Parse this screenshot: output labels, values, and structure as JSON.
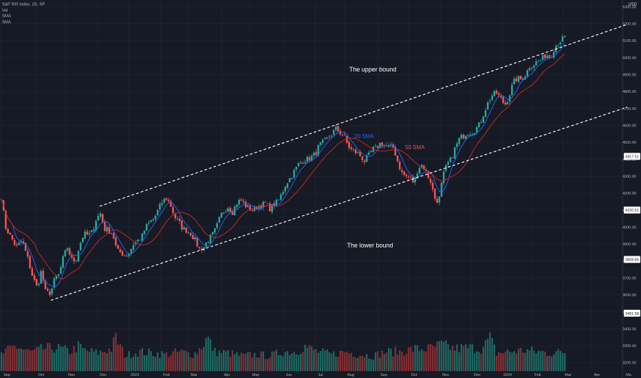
{
  "header": {
    "symbol": "S&P 500 Index, 1D, SP",
    "indicators": [
      "Vol",
      "SMA",
      "SMA"
    ],
    "currency": "USD"
  },
  "colors": {
    "background": "#161a25",
    "up": "#26a69a",
    "down": "#ef5350",
    "sma20": "#2962ff",
    "sma50": "#c62828",
    "channel": "#ffffff",
    "grid": "#1f2330",
    "axis_text": "#b2b5be"
  },
  "chart_data": {
    "type": "candlestick",
    "y_axis": {
      "ticks": [
        3200,
        3300,
        3400,
        3500,
        3600,
        3700,
        3800,
        3900,
        4000,
        4100,
        4200,
        4300,
        4400,
        4500,
        4600,
        4700,
        4800,
        4900,
        5000,
        5100,
        5200,
        5300
      ],
      "tick_labels": [
        "3200.00",
        "3300.00",
        "3400.00",
        "3500.00",
        "3600.00",
        "3700.00",
        "3800.00",
        "3900.00",
        "4000.00",
        "4100.00",
        "4200.00",
        "4300.00",
        "4400.00",
        "4500.00",
        "4600.00",
        "4700.00",
        "4800.00",
        "4900.00",
        "5000.00",
        "5100.00",
        "5200.00",
        "5300.00"
      ],
      "range": [
        3150,
        5340
      ],
      "price_labels": [
        {
          "value": 4417.51,
          "text": "4417.51"
        },
        {
          "value": 4100.51,
          "text": "4100.51"
        },
        {
          "value": 3808.86,
          "text": "3808.86"
        },
        {
          "value": 3491.58,
          "text": "3491.58"
        }
      ]
    },
    "x_axis": {
      "labels": [
        "Sep",
        "Oct",
        "Nov",
        "Dec",
        "2023",
        "Feb",
        "Mar",
        "Apr",
        "May",
        "Jun",
        "Jul",
        "Aug",
        "Sep",
        "Oct",
        "Nov",
        "Dec",
        "2024",
        "Feb",
        "Mar",
        "Apr",
        "Ma"
      ],
      "label_index": [
        0,
        50,
        94,
        140,
        186,
        232,
        272,
        320,
        362,
        410,
        456,
        500,
        548,
        592,
        638,
        684,
        728,
        772,
        816,
        858,
        904
      ]
    },
    "price_anchors": [
      [
        0,
        4180
      ],
      [
        6,
        4000
      ],
      [
        14,
        3940
      ],
      [
        22,
        3880
      ],
      [
        30,
        3920
      ],
      [
        38,
        3820
      ],
      [
        46,
        3700
      ],
      [
        52,
        3640
      ],
      [
        58,
        3740
      ],
      [
        64,
        3620
      ],
      [
        70,
        3610
      ],
      [
        74,
        3640
      ],
      [
        78,
        3700
      ],
      [
        84,
        3720
      ],
      [
        90,
        3820
      ],
      [
        96,
        3880
      ],
      [
        102,
        3810
      ],
      [
        108,
        3800
      ],
      [
        114,
        3900
      ],
      [
        120,
        3960
      ],
      [
        126,
        3950
      ],
      [
        132,
        3970
      ],
      [
        138,
        4050
      ],
      [
        144,
        4080
      ],
      [
        150,
        3990
      ],
      [
        156,
        3980
      ],
      [
        162,
        3960
      ],
      [
        168,
        3860
      ],
      [
        174,
        3850
      ],
      [
        180,
        3830
      ],
      [
        186,
        3850
      ],
      [
        192,
        3900
      ],
      [
        198,
        3920
      ],
      [
        204,
        3940
      ],
      [
        210,
        4000
      ],
      [
        216,
        4030
      ],
      [
        222,
        4050
      ],
      [
        228,
        4100
      ],
      [
        234,
        4150
      ],
      [
        240,
        4170
      ],
      [
        246,
        4130
      ],
      [
        252,
        4060
      ],
      [
        258,
        4030
      ],
      [
        264,
        3990
      ],
      [
        270,
        3980
      ],
      [
        276,
        3960
      ],
      [
        282,
        3920
      ],
      [
        288,
        3870
      ],
      [
        294,
        3880
      ],
      [
        300,
        3920
      ],
      [
        306,
        3950
      ],
      [
        312,
        3990
      ],
      [
        318,
        4060
      ],
      [
        324,
        4100
      ],
      [
        330,
        4120
      ],
      [
        336,
        4090
      ],
      [
        342,
        4140
      ],
      [
        348,
        4160
      ],
      [
        354,
        4130
      ],
      [
        360,
        4110
      ],
      [
        366,
        4100
      ],
      [
        372,
        4120
      ],
      [
        378,
        4130
      ],
      [
        384,
        4140
      ],
      [
        390,
        4110
      ],
      [
        396,
        4130
      ],
      [
        402,
        4150
      ],
      [
        408,
        4200
      ],
      [
        414,
        4260
      ],
      [
        420,
        4290
      ],
      [
        426,
        4330
      ],
      [
        432,
        4370
      ],
      [
        438,
        4390
      ],
      [
        444,
        4400
      ],
      [
        450,
        4410
      ],
      [
        456,
        4430
      ],
      [
        462,
        4480
      ],
      [
        468,
        4500
      ],
      [
        474,
        4520
      ],
      [
        480,
        4550
      ],
      [
        486,
        4580
      ],
      [
        492,
        4560
      ],
      [
        498,
        4540
      ],
      [
        504,
        4480
      ],
      [
        510,
        4450
      ],
      [
        516,
        4440
      ],
      [
        522,
        4420
      ],
      [
        528,
        4390
      ],
      [
        534,
        4420
      ],
      [
        540,
        4460
      ],
      [
        546,
        4470
      ],
      [
        552,
        4500
      ],
      [
        558,
        4480
      ],
      [
        564,
        4470
      ],
      [
        570,
        4470
      ],
      [
        576,
        4390
      ],
      [
        582,
        4320
      ],
      [
        588,
        4300
      ],
      [
        594,
        4290
      ],
      [
        600,
        4260
      ],
      [
        606,
        4350
      ],
      [
        612,
        4370
      ],
      [
        618,
        4320
      ],
      [
        624,
        4270
      ],
      [
        630,
        4170
      ],
      [
        636,
        4150
      ],
      [
        642,
        4300
      ],
      [
        648,
        4370
      ],
      [
        654,
        4400
      ],
      [
        660,
        4470
      ],
      [
        666,
        4520
      ],
      [
        672,
        4540
      ],
      [
        678,
        4560
      ],
      [
        684,
        4560
      ],
      [
        690,
        4580
      ],
      [
        696,
        4610
      ],
      [
        702,
        4680
      ],
      [
        708,
        4740
      ],
      [
        714,
        4780
      ],
      [
        720,
        4790
      ],
      [
        726,
        4760
      ],
      [
        732,
        4720
      ],
      [
        738,
        4770
      ],
      [
        744,
        4850
      ],
      [
        750,
        4880
      ],
      [
        756,
        4870
      ],
      [
        762,
        4900
      ],
      [
        768,
        4950
      ],
      [
        774,
        4960
      ],
      [
        780,
        4980
      ],
      [
        786,
        4990
      ],
      [
        792,
        5020
      ],
      [
        798,
        5000
      ],
      [
        804,
        5060
      ],
      [
        810,
        5090
      ],
      [
        816,
        5110
      ],
      [
        820,
        5120
      ]
    ],
    "sma20_label": "20 SMA",
    "sma50_label": "50 SMA",
    "upper_bound": {
      "label": "The upper bound",
      "from": [
        143,
        4123
      ],
      "to": [
        910,
        5196
      ]
    },
    "lower_bound": {
      "label": "The lower bound",
      "from": [
        72,
        3568
      ],
      "to": [
        910,
        4708
      ]
    },
    "volume_range": [
      0,
      380
    ],
    "volume_anchors": [
      [
        0,
        60
      ],
      [
        20,
        90
      ],
      [
        40,
        70
      ],
      [
        48,
        70
      ],
      [
        60,
        80
      ],
      [
        80,
        85
      ],
      [
        100,
        70
      ],
      [
        113,
        90
      ],
      [
        120,
        75
      ],
      [
        140,
        65
      ],
      [
        160,
        80
      ],
      [
        166,
        120
      ],
      [
        180,
        55
      ],
      [
        200,
        70
      ],
      [
        220,
        65
      ],
      [
        240,
        60
      ],
      [
        260,
        70
      ],
      [
        280,
        60
      ],
      [
        290,
        85
      ],
      [
        300,
        120
      ],
      [
        310,
        70
      ],
      [
        330,
        65
      ],
      [
        350,
        55
      ],
      [
        370,
        60
      ],
      [
        390,
        55
      ],
      [
        410,
        70
      ],
      [
        430,
        70
      ],
      [
        440,
        90
      ],
      [
        460,
        70
      ],
      [
        480,
        60
      ],
      [
        500,
        70
      ],
      [
        520,
        60
      ],
      [
        540,
        55
      ],
      [
        560,
        70
      ],
      [
        580,
        70
      ],
      [
        600,
        80
      ],
      [
        620,
        80
      ],
      [
        640,
        95
      ],
      [
        660,
        80
      ],
      [
        680,
        85
      ],
      [
        700,
        80
      ],
      [
        710,
        120
      ],
      [
        720,
        65
      ],
      [
        740,
        70
      ],
      [
        760,
        75
      ],
      [
        780,
        70
      ],
      [
        800,
        65
      ],
      [
        820,
        70
      ]
    ]
  }
}
